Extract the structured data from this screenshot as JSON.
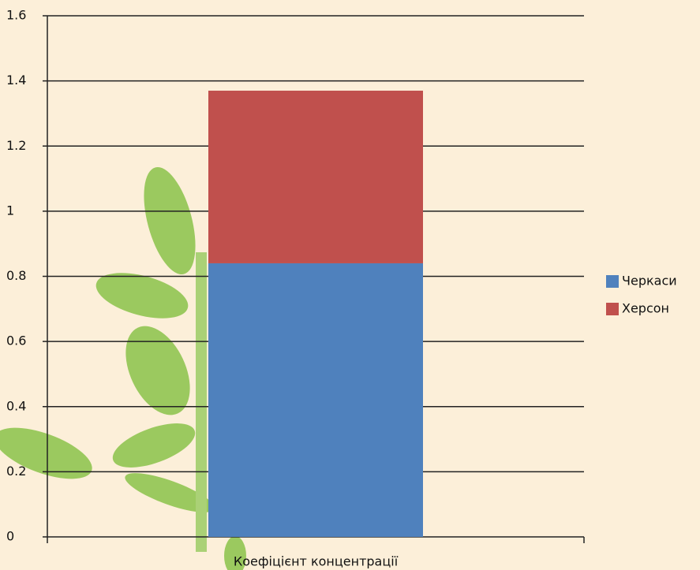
{
  "chart_data": {
    "type": "stacked_bar",
    "categories": [
      "Коефіцієнт концентрації"
    ],
    "series": [
      {
        "name": "Черкаси",
        "color": "#4f81bd",
        "values": [
          0.84
        ]
      },
      {
        "name": "Херсон",
        "color": "#c0504d",
        "values": [
          0.53
        ]
      }
    ],
    "ylim": [
      0,
      1.6
    ],
    "yticks": [
      0,
      0.2,
      0.4,
      0.6,
      0.8,
      1,
      1.2,
      1.4,
      1.6
    ],
    "grid": true,
    "legend": "right"
  }
}
